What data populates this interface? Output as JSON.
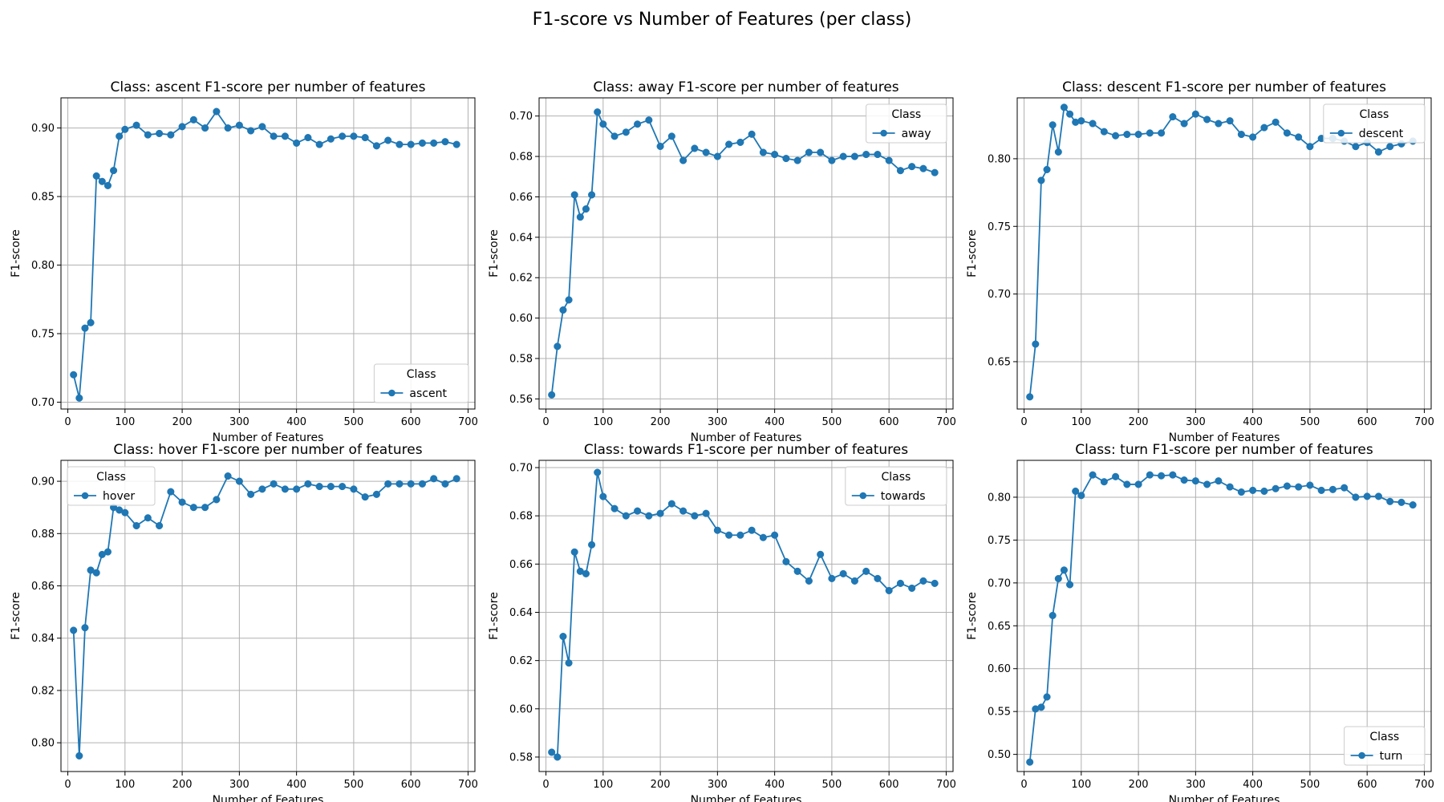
{
  "suptitle": "F1-score vs Number of Features (per class)",
  "colors": {
    "series": "#1f77b4",
    "grid": "#b0b0b0",
    "axes": "#000000"
  },
  "chart_data": [
    {
      "type": "line",
      "title": "Class: ascent F1-score per number of features",
      "xlabel": "Number of Features",
      "ylabel": "F1-score",
      "xlim": [
        -12,
        712
      ],
      "ylim": [
        0.695,
        0.922
      ],
      "xticks": [
        0,
        100,
        200,
        300,
        400,
        500,
        600,
        700
      ],
      "yticks": [
        0.7,
        0.75,
        0.8,
        0.85,
        0.9
      ],
      "grid": true,
      "legend_title": "Class",
      "legend_loc": "lower-right",
      "series": [
        {
          "name": "ascent",
          "x": [
            10,
            20,
            30,
            40,
            50,
            60,
            70,
            80,
            90,
            100,
            120,
            140,
            160,
            180,
            200,
            220,
            240,
            260,
            280,
            300,
            320,
            340,
            360,
            380,
            400,
            420,
            440,
            460,
            480,
            500,
            520,
            540,
            560,
            580,
            600,
            620,
            640,
            660,
            680
          ],
          "y": [
            0.72,
            0.703,
            0.754,
            0.758,
            0.865,
            0.861,
            0.858,
            0.869,
            0.894,
            0.899,
            0.902,
            0.895,
            0.896,
            0.895,
            0.901,
            0.906,
            0.9,
            0.912,
            0.9,
            0.902,
            0.898,
            0.901,
            0.894,
            0.894,
            0.889,
            0.893,
            0.888,
            0.892,
            0.894,
            0.894,
            0.893,
            0.887,
            0.891,
            0.888,
            0.888,
            0.889,
            0.889,
            0.89,
            0.888
          ]
        }
      ]
    },
    {
      "type": "line",
      "title": "Class: away F1-score per number of features",
      "xlabel": "Number of Features",
      "ylabel": "F1-score",
      "xlim": [
        -12,
        712
      ],
      "ylim": [
        0.555,
        0.709
      ],
      "xticks": [
        0,
        100,
        200,
        300,
        400,
        500,
        600,
        700
      ],
      "yticks": [
        0.56,
        0.58,
        0.6,
        0.62,
        0.64,
        0.66,
        0.68,
        0.7
      ],
      "grid": true,
      "legend_title": "Class",
      "legend_loc": "upper-right",
      "series": [
        {
          "name": "away",
          "x": [
            10,
            20,
            30,
            40,
            50,
            60,
            70,
            80,
            90,
            100,
            120,
            140,
            160,
            180,
            200,
            220,
            240,
            260,
            280,
            300,
            320,
            340,
            360,
            380,
            400,
            420,
            440,
            460,
            480,
            500,
            520,
            540,
            560,
            580,
            600,
            620,
            640,
            660,
            680
          ],
          "y": [
            0.562,
            0.586,
            0.604,
            0.609,
            0.661,
            0.65,
            0.654,
            0.661,
            0.702,
            0.696,
            0.69,
            0.692,
            0.696,
            0.698,
            0.685,
            0.69,
            0.678,
            0.684,
            0.682,
            0.68,
            0.686,
            0.687,
            0.691,
            0.682,
            0.681,
            0.679,
            0.678,
            0.682,
            0.682,
            0.678,
            0.68,
            0.68,
            0.681,
            0.681,
            0.678,
            0.673,
            0.675,
            0.674,
            0.672
          ]
        }
      ]
    },
    {
      "type": "line",
      "title": "Class: descent F1-score per number of features",
      "xlabel": "Number of Features",
      "ylabel": "F1-score",
      "xlim": [
        -12,
        712
      ],
      "ylim": [
        0.615,
        0.845
      ],
      "xticks": [
        0,
        100,
        200,
        300,
        400,
        500,
        600,
        700
      ],
      "yticks": [
        0.65,
        0.7,
        0.75,
        0.8
      ],
      "grid": true,
      "legend_title": "Class",
      "legend_loc": "upper-right",
      "series": [
        {
          "name": "descent",
          "x": [
            10,
            20,
            30,
            40,
            50,
            60,
            70,
            80,
            90,
            100,
            120,
            140,
            160,
            180,
            200,
            220,
            240,
            260,
            280,
            300,
            320,
            340,
            360,
            380,
            400,
            420,
            440,
            460,
            480,
            500,
            520,
            540,
            560,
            580,
            600,
            620,
            640,
            660,
            680
          ],
          "y": [
            0.624,
            0.663,
            0.784,
            0.792,
            0.825,
            0.805,
            0.838,
            0.833,
            0.827,
            0.828,
            0.826,
            0.82,
            0.817,
            0.818,
            0.818,
            0.819,
            0.819,
            0.831,
            0.826,
            0.833,
            0.829,
            0.826,
            0.828,
            0.818,
            0.816,
            0.823,
            0.827,
            0.819,
            0.816,
            0.809,
            0.815,
            0.815,
            0.813,
            0.809,
            0.812,
            0.805,
            0.809,
            0.811,
            0.813
          ]
        }
      ]
    },
    {
      "type": "line",
      "title": "Class: hover F1-score per number of features",
      "xlabel": "Number of Features",
      "ylabel": "F1-score",
      "xlim": [
        -12,
        712
      ],
      "ylim": [
        0.789,
        0.908
      ],
      "xticks": [
        0,
        100,
        200,
        300,
        400,
        500,
        600,
        700
      ],
      "yticks": [
        0.8,
        0.82,
        0.84,
        0.86,
        0.88,
        0.9
      ],
      "grid": true,
      "legend_title": "Class",
      "legend_loc": "upper-left",
      "series": [
        {
          "name": "hover",
          "x": [
            10,
            20,
            30,
            40,
            50,
            60,
            70,
            80,
            90,
            100,
            120,
            140,
            160,
            180,
            200,
            220,
            240,
            260,
            280,
            300,
            320,
            340,
            360,
            380,
            400,
            420,
            440,
            460,
            480,
            500,
            520,
            540,
            560,
            580,
            600,
            620,
            640,
            660,
            680
          ],
          "y": [
            0.843,
            0.795,
            0.844,
            0.866,
            0.865,
            0.872,
            0.873,
            0.89,
            0.889,
            0.888,
            0.883,
            0.886,
            0.883,
            0.896,
            0.892,
            0.89,
            0.89,
            0.893,
            0.902,
            0.9,
            0.895,
            0.897,
            0.899,
            0.897,
            0.897,
            0.899,
            0.898,
            0.898,
            0.898,
            0.897,
            0.894,
            0.895,
            0.899,
            0.899,
            0.899,
            0.899,
            0.901,
            0.899,
            0.901
          ]
        }
      ]
    },
    {
      "type": "line",
      "title": "Class: towards F1-score per number of features",
      "xlabel": "Number of Features",
      "ylabel": "F1-score",
      "xlim": [
        -12,
        712
      ],
      "ylim": [
        0.574,
        0.703
      ],
      "xticks": [
        0,
        100,
        200,
        300,
        400,
        500,
        600,
        700
      ],
      "yticks": [
        0.58,
        0.6,
        0.62,
        0.64,
        0.66,
        0.68,
        0.7
      ],
      "grid": true,
      "legend_title": "Class",
      "legend_loc": "upper-right",
      "series": [
        {
          "name": "towards",
          "x": [
            10,
            20,
            30,
            40,
            50,
            60,
            70,
            80,
            90,
            100,
            120,
            140,
            160,
            180,
            200,
            220,
            240,
            260,
            280,
            300,
            320,
            340,
            360,
            380,
            400,
            420,
            440,
            460,
            480,
            500,
            520,
            540,
            560,
            580,
            600,
            620,
            640,
            660,
            680
          ],
          "y": [
            0.582,
            0.58,
            0.63,
            0.619,
            0.665,
            0.657,
            0.656,
            0.668,
            0.698,
            0.688,
            0.683,
            0.68,
            0.682,
            0.68,
            0.681,
            0.685,
            0.682,
            0.68,
            0.681,
            0.674,
            0.672,
            0.672,
            0.674,
            0.671,
            0.672,
            0.661,
            0.657,
            0.653,
            0.664,
            0.654,
            0.656,
            0.653,
            0.657,
            0.654,
            0.649,
            0.652,
            0.65,
            0.653,
            0.652
          ]
        }
      ]
    },
    {
      "type": "line",
      "title": "Class: turn F1-score per number of features",
      "xlabel": "Number of Features",
      "ylabel": "F1-score",
      "xlim": [
        -12,
        712
      ],
      "ylim": [
        0.48,
        0.843
      ],
      "xticks": [
        0,
        100,
        200,
        300,
        400,
        500,
        600,
        700
      ],
      "yticks": [
        0.5,
        0.55,
        0.6,
        0.65,
        0.7,
        0.75,
        0.8
      ],
      "grid": true,
      "legend_title": "Class",
      "legend_loc": "lower-right",
      "series": [
        {
          "name": "turn",
          "x": [
            10,
            20,
            30,
            40,
            50,
            60,
            70,
            80,
            90,
            100,
            120,
            140,
            160,
            180,
            200,
            220,
            240,
            260,
            280,
            300,
            320,
            340,
            360,
            380,
            400,
            420,
            440,
            460,
            480,
            500,
            520,
            540,
            560,
            580,
            600,
            620,
            640,
            660,
            680
          ],
          "y": [
            0.491,
            0.553,
            0.555,
            0.567,
            0.662,
            0.705,
            0.715,
            0.698,
            0.807,
            0.802,
            0.826,
            0.818,
            0.824,
            0.815,
            0.815,
            0.826,
            0.825,
            0.826,
            0.82,
            0.819,
            0.815,
            0.819,
            0.812,
            0.806,
            0.808,
            0.807,
            0.81,
            0.813,
            0.812,
            0.814,
            0.808,
            0.809,
            0.811,
            0.8,
            0.801,
            0.801,
            0.795,
            0.794,
            0.791
          ]
        }
      ]
    }
  ]
}
